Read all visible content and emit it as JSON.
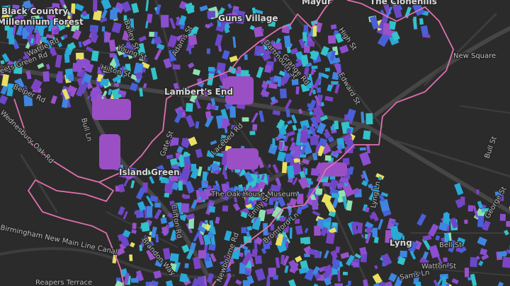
{
  "map": {
    "places": [
      "Black Country",
      "Millennium Forest",
      "Guns Village",
      "Mayur",
      "The Clonehills",
      "Lambert's End",
      "Island Green",
      "The Oak House Museum",
      "Lyng",
      "New Square"
    ],
    "streets": [
      "Wattle Rd",
      "Greets Green Rd",
      "Belper Rd",
      "Bailey St",
      "Young St",
      "Hilton St",
      "Adams St",
      "Dartmouth St",
      "Grange Rd",
      "High St",
      "Edward St",
      "Bull Ln",
      "Wednesbury Oak Rd",
      "Gate St",
      "Lacebed Rd",
      "Clifton Rd",
      "Brandon Way",
      "Birmingham New Main Line Canal",
      "Emily St",
      "Bromford Ln",
      "Newbourne Rd",
      "Lyng Ln",
      "Bell St",
      "Watton St",
      "Sams Ln",
      "Bull St",
      "George St",
      "Reapers Terrace"
    ]
  }
}
